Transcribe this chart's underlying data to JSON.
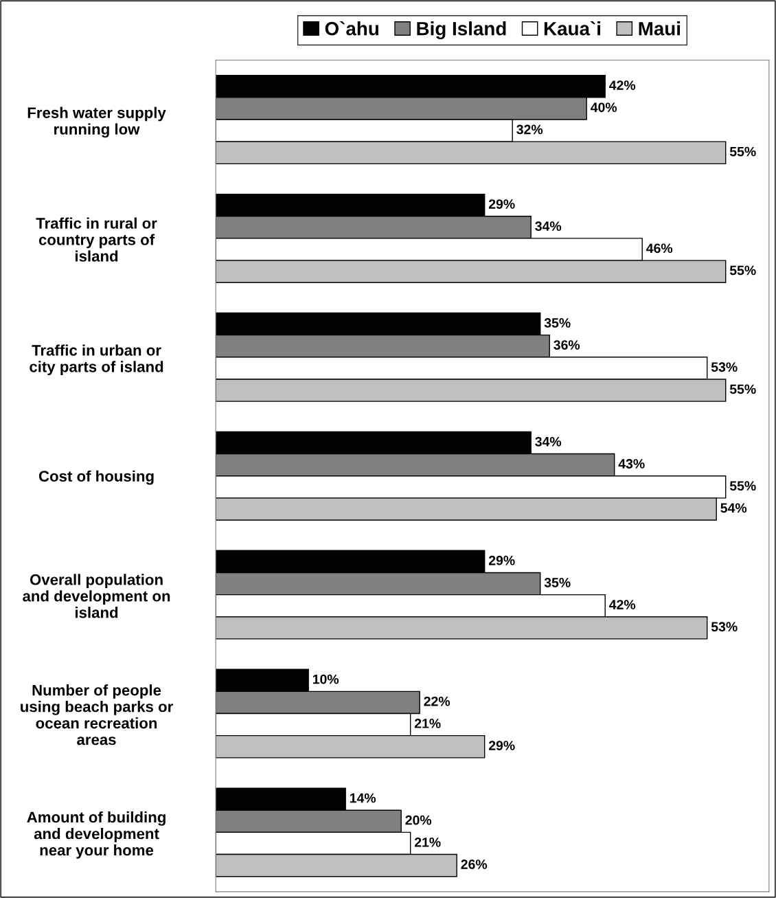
{
  "chart_data": {
    "type": "bar",
    "orientation": "horizontal",
    "categories": [
      "Fresh water supply\nrunning low",
      "Traffic in rural or\ncountry parts of\nisland",
      "Traffic in urban or\ncity parts of island",
      "Cost of housing",
      "Overall population\nand development on\nisland",
      "Number of people\nusing beach parks or\nocean recreation\nareas",
      "Amount of building\nand development\nnear your home"
    ],
    "series": [
      {
        "name": "O`ahu",
        "color": "#000000",
        "values": [
          42,
          29,
          35,
          34,
          29,
          10,
          14
        ],
        "value_labels": [
          "42%",
          "29%",
          "35%",
          "34%",
          "29%",
          "10%",
          "14%"
        ]
      },
      {
        "name": "Big Island",
        "color": "#808080",
        "values": [
          40,
          34,
          36,
          43,
          35,
          22,
          20
        ],
        "value_labels": [
          "40%",
          "34%",
          "36%",
          "43%",
          "35%",
          "22%",
          "20%"
        ]
      },
      {
        "name": "Kaua`i",
        "color": "#ffffff",
        "values": [
          32,
          46,
          53,
          55,
          42,
          21,
          21
        ],
        "value_labels": [
          "32%",
          "46%",
          "53%",
          "55%",
          "42%",
          "21%",
          "21%"
        ]
      },
      {
        "name": "Maui",
        "color": "#c0c0c0",
        "values": [
          55,
          55,
          55,
          54,
          53,
          29,
          26
        ],
        "value_labels": [
          "55%",
          "55%",
          "55%",
          "54%",
          "53%",
          "29%",
          "26%"
        ]
      }
    ],
    "legend": "top",
    "tick_labels": "y"
  }
}
